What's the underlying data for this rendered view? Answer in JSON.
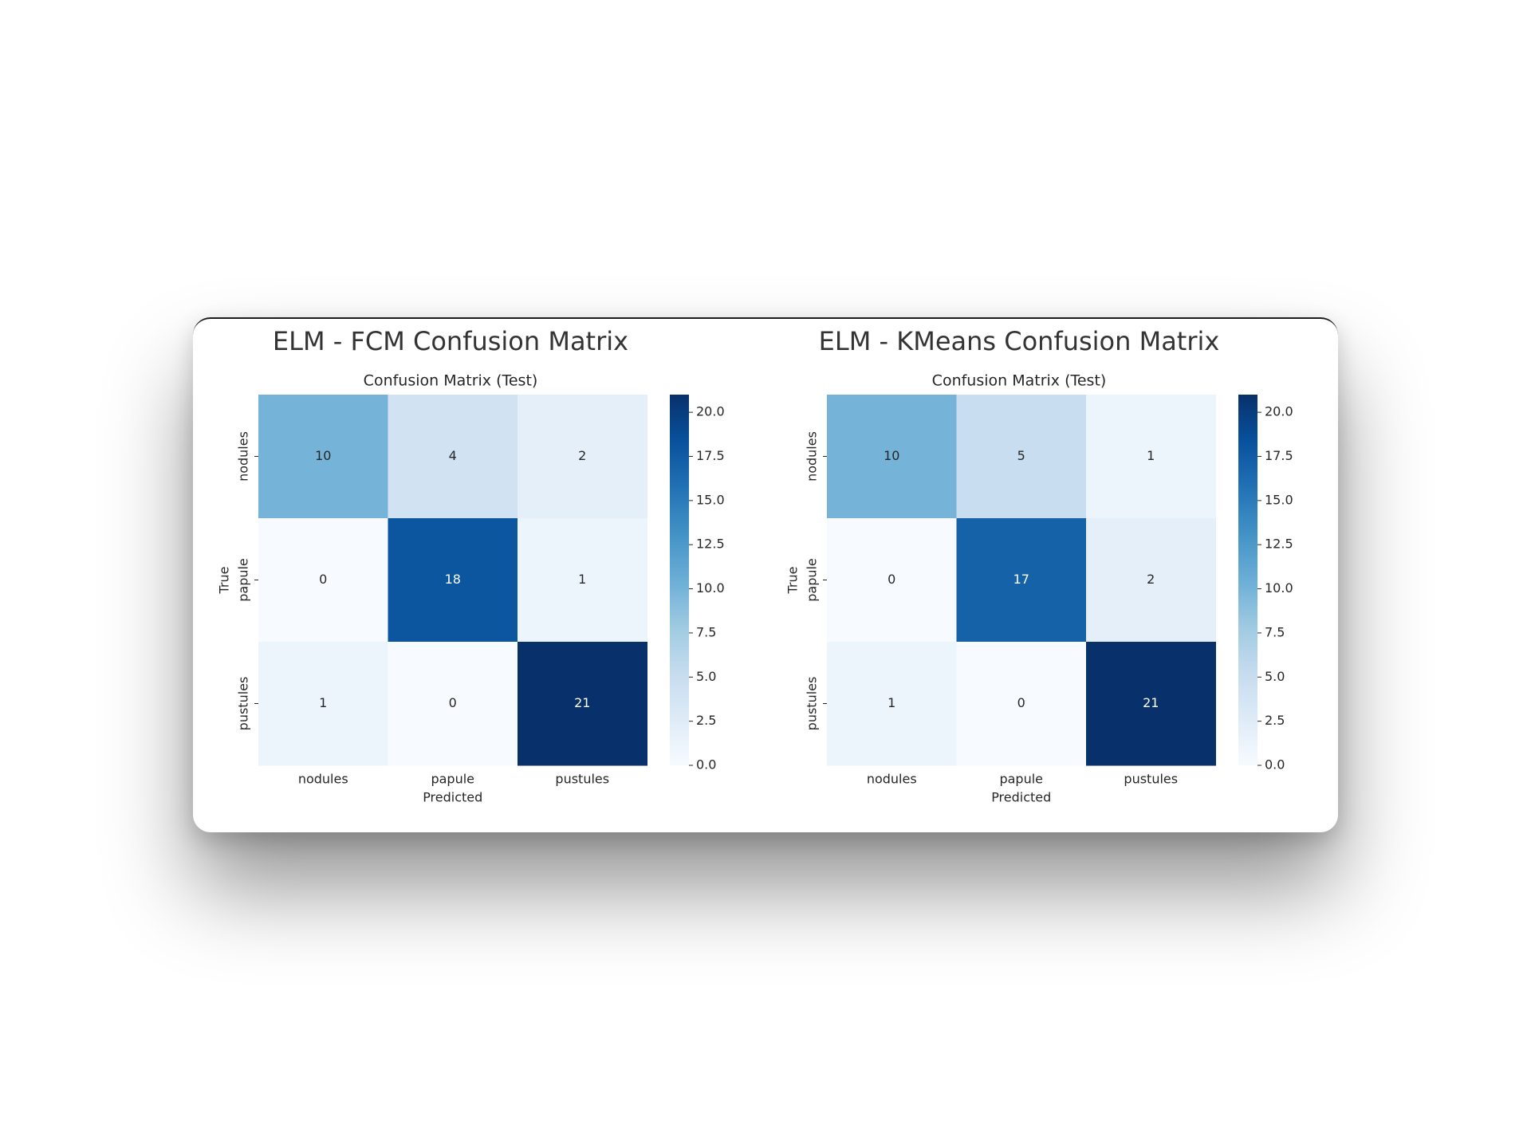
{
  "chart_data": [
    {
      "type": "heatmap",
      "title": "ELM - FCM Confusion Matrix",
      "subtitle": "Confusion Matrix (Test)",
      "xlabel": "Predicted",
      "ylabel": "True",
      "x_categories": [
        "nodules",
        "papule",
        "pustules"
      ],
      "y_categories": [
        "nodules",
        "papule",
        "pustules"
      ],
      "values": [
        [
          10,
          4,
          2
        ],
        [
          0,
          18,
          1
        ],
        [
          1,
          0,
          21
        ]
      ],
      "colormap": "Blues",
      "colorbar": {
        "min": 0,
        "max": 21,
        "ticks": [
          "0.0",
          "2.5",
          "5.0",
          "7.5",
          "10.0",
          "12.5",
          "15.0",
          "17.5",
          "20.0"
        ]
      }
    },
    {
      "type": "heatmap",
      "title": "ELM - KMeans Confusion Matrix",
      "subtitle": "Confusion Matrix (Test)",
      "xlabel": "Predicted",
      "ylabel": "True",
      "x_categories": [
        "nodules",
        "papule",
        "pustules"
      ],
      "y_categories": [
        "nodules",
        "papule",
        "pustules"
      ],
      "values": [
        [
          10,
          5,
          1
        ],
        [
          0,
          17,
          2
        ],
        [
          1,
          0,
          21
        ]
      ],
      "colormap": "Blues",
      "colorbar": {
        "min": 0,
        "max": 21,
        "ticks": [
          "0.0",
          "2.5",
          "5.0",
          "7.5",
          "10.0",
          "12.5",
          "15.0",
          "17.5",
          "20.0"
        ]
      }
    }
  ]
}
